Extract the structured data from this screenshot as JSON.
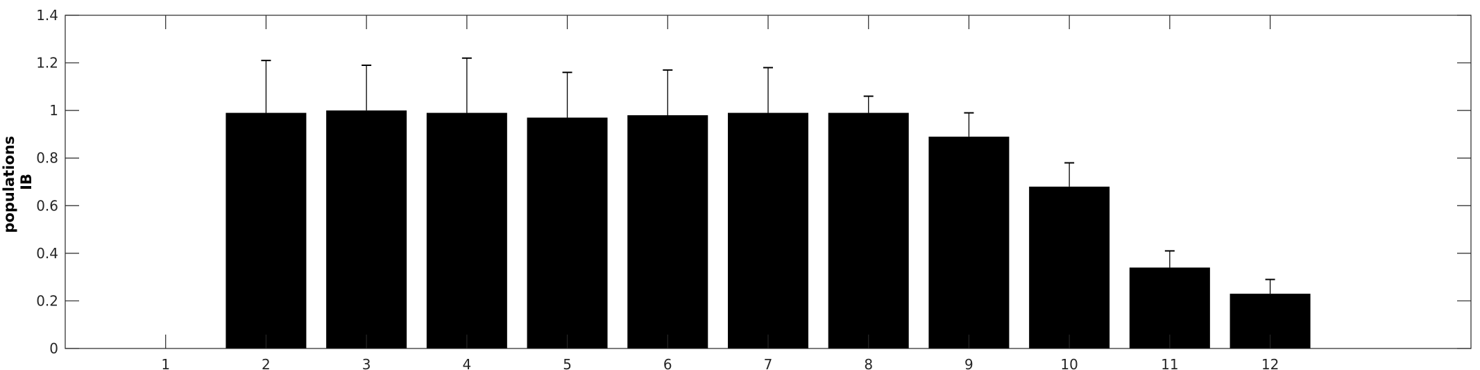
{
  "chart_data": {
    "type": "bar",
    "categories": [
      "1",
      "2",
      "3",
      "4",
      "5",
      "6",
      "7",
      "8",
      "9",
      "10",
      "11",
      "12"
    ],
    "values": [
      0,
      0.99,
      1.0,
      0.99,
      0.97,
      0.98,
      0.99,
      0.99,
      0.89,
      0.68,
      0.34,
      0.23
    ],
    "error_plus": [
      0,
      0.22,
      0.19,
      0.23,
      0.19,
      0.19,
      0.19,
      0.07,
      0.1,
      0.1,
      0.07,
      0.06
    ],
    "ylabel_lines": [
      "populations",
      "IB"
    ],
    "xlim": [
      0,
      14
    ],
    "ylim": [
      0,
      1.4
    ],
    "yticks": [
      0,
      0.2,
      0.4,
      0.6,
      0.8,
      1,
      1.2,
      1.4
    ],
    "ytick_labels": [
      "0",
      "0.2",
      "0.4",
      "0.6",
      "0.8",
      "1",
      "1.2",
      "1.4"
    ],
    "grid": false,
    "bar_color": "#000000",
    "axis_color": "#262626"
  }
}
